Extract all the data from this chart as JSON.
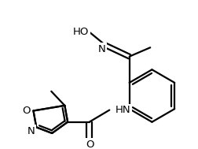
{
  "bg_color": "#ffffff",
  "line_color": "#000000",
  "line_width": 1.6,
  "font_size": 9.5,
  "fig_width": 2.53,
  "fig_height": 1.89,
  "dpi": 100,
  "xlim": [
    0,
    253
  ],
  "ylim": [
    0,
    189
  ]
}
